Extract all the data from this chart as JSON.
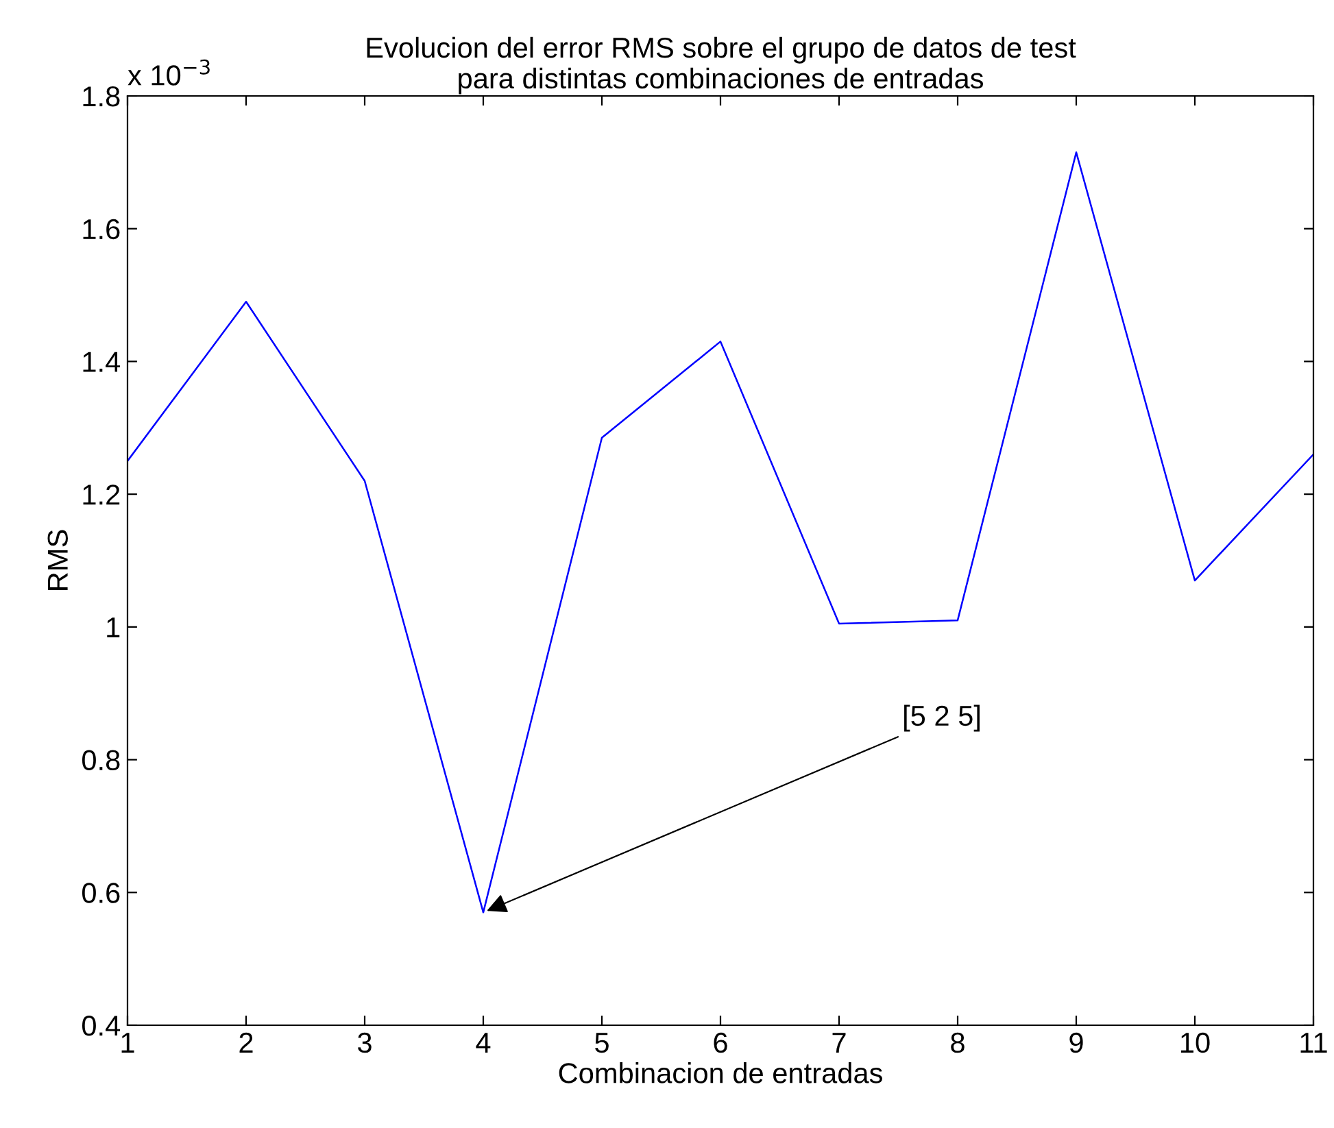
{
  "chart_data": {
    "type": "line",
    "title": "Evolucion del error RMS sobre el grupo de datos de test\npara distintas combinaciones de entradas",
    "xlabel": "Combinacion de entradas",
    "ylabel": "RMS",
    "x": [
      1,
      2,
      3,
      4,
      5,
      6,
      7,
      8,
      9,
      10,
      11
    ],
    "series": [
      {
        "color": "#0000ff",
        "values": [
          1.25,
          1.49,
          1.22,
          0.57,
          1.285,
          1.43,
          1.005,
          1.01,
          1.715,
          1.07,
          1.26
        ]
      }
    ],
    "xlim": [
      1,
      11
    ],
    "xticks": [
      1,
      2,
      3,
      4,
      5,
      6,
      7,
      8,
      9,
      10,
      11
    ],
    "ylim": [
      0.4,
      1.8
    ],
    "yticks": [
      0.4,
      0.6,
      0.8,
      1,
      1.2,
      1.4,
      1.6,
      1.8
    ],
    "grid": false,
    "legend": false,
    "marker": "none",
    "line_style": "solid",
    "annotations": [
      "x 10$^{−3}$",
      {
        "text": "[5 2 5]",
        "x": 4,
        "y": 0.57
      }
    ]
  }
}
